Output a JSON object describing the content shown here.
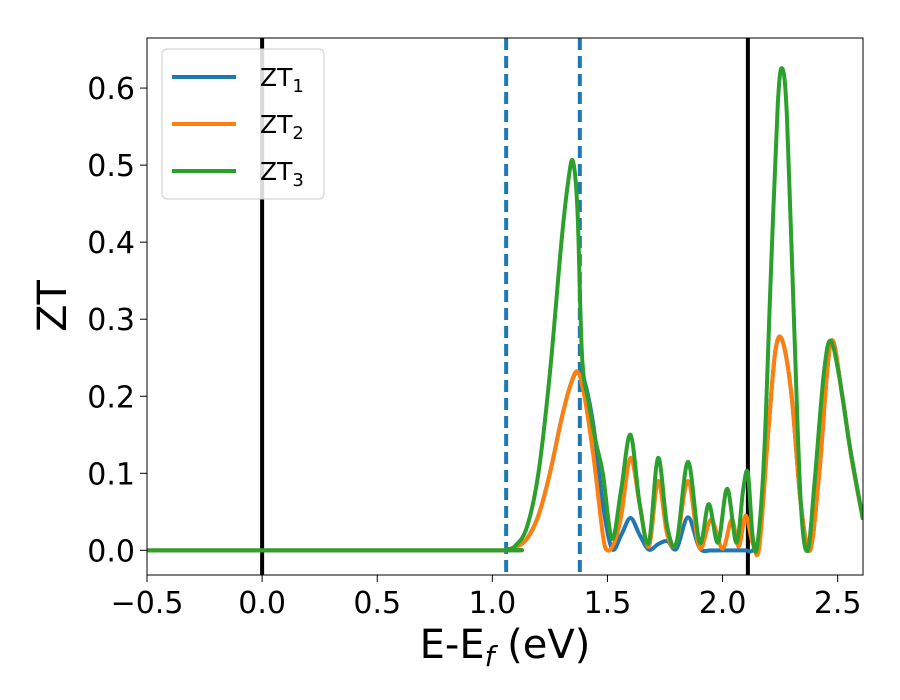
{
  "chart_data": {
    "type": "line",
    "xlabel": "E-E",
    "xlabel_subscript": "f",
    "xlabel_unit": " (eV)",
    "ylabel": "ZT",
    "xlim": [
      -0.5,
      2.61
    ],
    "ylim": [
      -0.032,
      0.665
    ],
    "x_ticks": [
      -0.5,
      0.0,
      0.5,
      1.0,
      1.5,
      2.0,
      2.5
    ],
    "x_tick_labels": [
      "−0.5",
      "0.0",
      "0.5",
      "1.0",
      "1.5",
      "2.0",
      "2.5"
    ],
    "y_ticks": [
      0.0,
      0.1,
      0.2,
      0.3,
      0.4,
      0.5,
      0.6
    ],
    "y_tick_labels": [
      "0.0",
      "0.1",
      "0.2",
      "0.3",
      "0.4",
      "0.5",
      "0.6"
    ],
    "grid": false,
    "legend_position": "top-left",
    "vertical_lines": [
      {
        "x": 0.0,
        "style": "solid",
        "color": "#000000"
      },
      {
        "x": 1.06,
        "style": "dashed",
        "color": "#1f77b4"
      },
      {
        "x": 1.38,
        "style": "dashed",
        "color": "#1f77b4"
      },
      {
        "x": 2.11,
        "style": "solid",
        "color": "#000000"
      }
    ],
    "series": [
      {
        "name": "ZT",
        "name_subscript": "1",
        "color": "#1f77b4",
        "x": [
          -0.5,
          1.0,
          1.06,
          1.1,
          1.15,
          1.2,
          1.25,
          1.3,
          1.34,
          1.37,
          1.4,
          1.44,
          1.48,
          1.52,
          1.56,
          1.6,
          1.64,
          1.68,
          1.72,
          1.76,
          1.8,
          1.85,
          1.9,
          1.95,
          2.0,
          2.05,
          2.1,
          2.13,
          2.16,
          2.2,
          2.23,
          2.26,
          2.3,
          2.34,
          2.38,
          2.42,
          2.47,
          2.52,
          2.56,
          2.61
        ],
        "y": [
          0.0,
          0.0,
          0.001,
          0.004,
          0.015,
          0.045,
          0.1,
          0.17,
          0.215,
          0.232,
          0.22,
          0.16,
          0.06,
          0.002,
          0.02,
          0.042,
          0.02,
          0.001,
          0.008,
          0.012,
          0.002,
          0.043,
          0.003,
          0.0,
          0.0,
          0.0,
          0.0,
          0.0,
          0.02,
          0.16,
          0.26,
          0.272,
          0.2,
          0.06,
          0.0,
          0.1,
          0.27,
          0.2,
          0.12,
          0.04
        ]
      },
      {
        "name": "ZT",
        "name_subscript": "2",
        "color": "#ff7f0e",
        "x": [
          -0.5,
          1.0,
          1.06,
          1.1,
          1.15,
          1.2,
          1.25,
          1.3,
          1.34,
          1.37,
          1.4,
          1.44,
          1.48,
          1.5,
          1.53,
          1.56,
          1.6,
          1.64,
          1.68,
          1.72,
          1.76,
          1.8,
          1.85,
          1.9,
          1.95,
          2.0,
          2.04,
          2.07,
          2.1,
          2.13,
          2.16,
          2.2,
          2.23,
          2.26,
          2.3,
          2.34,
          2.38,
          2.42,
          2.47,
          2.52,
          2.56,
          2.61
        ],
        "y": [
          0.0,
          0.0,
          0.001,
          0.004,
          0.015,
          0.045,
          0.1,
          0.17,
          0.215,
          0.232,
          0.2,
          0.12,
          0.02,
          0.0,
          0.01,
          0.045,
          0.12,
          0.06,
          0.005,
          0.09,
          0.02,
          0.01,
          0.09,
          0.003,
          0.04,
          0.002,
          0.04,
          0.005,
          0.045,
          0.01,
          0.005,
          0.16,
          0.26,
          0.272,
          0.2,
          0.06,
          0.0,
          0.1,
          0.27,
          0.2,
          0.12,
          0.04
        ]
      },
      {
        "name": "ZT",
        "name_subscript": "3",
        "color": "#2ca02c",
        "x": [
          -0.5,
          1.0,
          1.06,
          1.1,
          1.15,
          1.2,
          1.25,
          1.3,
          1.33,
          1.35,
          1.37,
          1.39,
          1.42,
          1.45,
          1.48,
          1.52,
          1.56,
          1.6,
          1.64,
          1.68,
          1.72,
          1.76,
          1.8,
          1.85,
          1.9,
          1.94,
          1.98,
          2.02,
          2.06,
          2.09,
          2.11,
          2.13,
          2.15,
          2.18,
          2.21,
          2.24,
          2.26,
          2.28,
          2.31,
          2.34,
          2.37,
          2.4,
          2.44,
          2.47,
          2.51,
          2.55,
          2.61
        ],
        "y": [
          0.0,
          0.0,
          0.001,
          0.006,
          0.03,
          0.1,
          0.23,
          0.4,
          0.48,
          0.505,
          0.44,
          0.25,
          0.19,
          0.14,
          0.1,
          0.015,
          0.08,
          0.15,
          0.06,
          0.01,
          0.12,
          0.03,
          0.01,
          0.115,
          0.01,
          0.06,
          0.01,
          0.08,
          0.01,
          0.08,
          0.1,
          0.02,
          0.005,
          0.12,
          0.36,
          0.58,
          0.625,
          0.56,
          0.3,
          0.06,
          0.0,
          0.09,
          0.23,
          0.272,
          0.22,
          0.14,
          0.04
        ]
      }
    ]
  }
}
